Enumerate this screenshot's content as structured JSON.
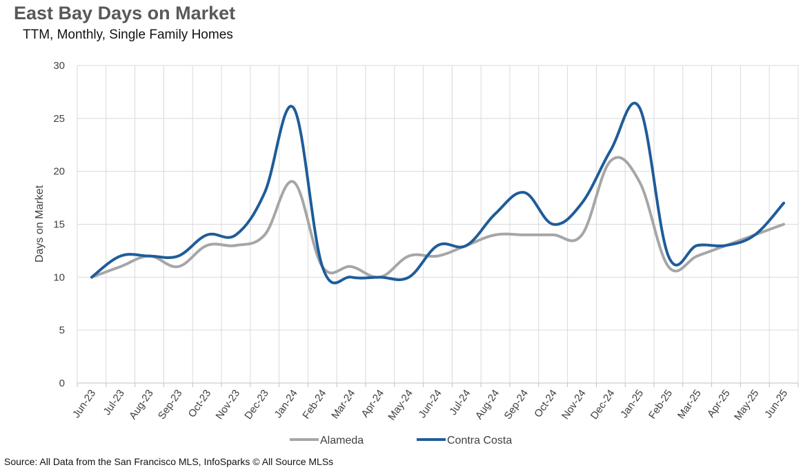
{
  "title": "East Bay Days on Market",
  "subtitle": "TTM, Monthly, Single Family Homes",
  "source": "Source: All Data from the San Francisco MLS, InfoSparks © All Source MLSs",
  "chart_data": {
    "type": "line",
    "title": "East Bay Days on Market",
    "subtitle": "TTM, Monthly, Single Family Homes",
    "xlabel": "",
    "ylabel": "Days on Market",
    "ylim": [
      0,
      30
    ],
    "yticks": [
      0,
      5,
      10,
      15,
      20,
      25,
      30
    ],
    "grid": true,
    "legend_position": "bottom",
    "categories": [
      "Jun-23",
      "Jul-23",
      "Aug-23",
      "Sep-23",
      "Oct-23",
      "Nov-23",
      "Dec-23",
      "Jan-24",
      "Feb-24",
      "Mar-24",
      "Apr-24",
      "May-24",
      "Jun-24",
      "Jul-24",
      "Aug-24",
      "Sep-24",
      "Oct-24",
      "Nov-24",
      "Dec-24",
      "Jan-25",
      "Feb-25",
      "Mar-25",
      "Apr-25",
      "May-25",
      "Jun-25"
    ],
    "series": [
      {
        "name": "Alameda",
        "color": "#A6A6A6",
        "values": [
          10,
          11,
          12,
          11,
          13,
          13,
          14,
          19,
          11,
          11,
          10,
          12,
          12,
          13,
          14,
          14,
          14,
          14,
          21,
          19,
          11,
          12,
          13,
          14,
          15
        ]
      },
      {
        "name": "Contra Costa",
        "color": "#1F5C99",
        "values": [
          10,
          12,
          12,
          12,
          14,
          14,
          18,
          26,
          11,
          10,
          10,
          10,
          13,
          13,
          16,
          18,
          15,
          17,
          22,
          26,
          12,
          13,
          13,
          14,
          17
        ]
      }
    ]
  }
}
